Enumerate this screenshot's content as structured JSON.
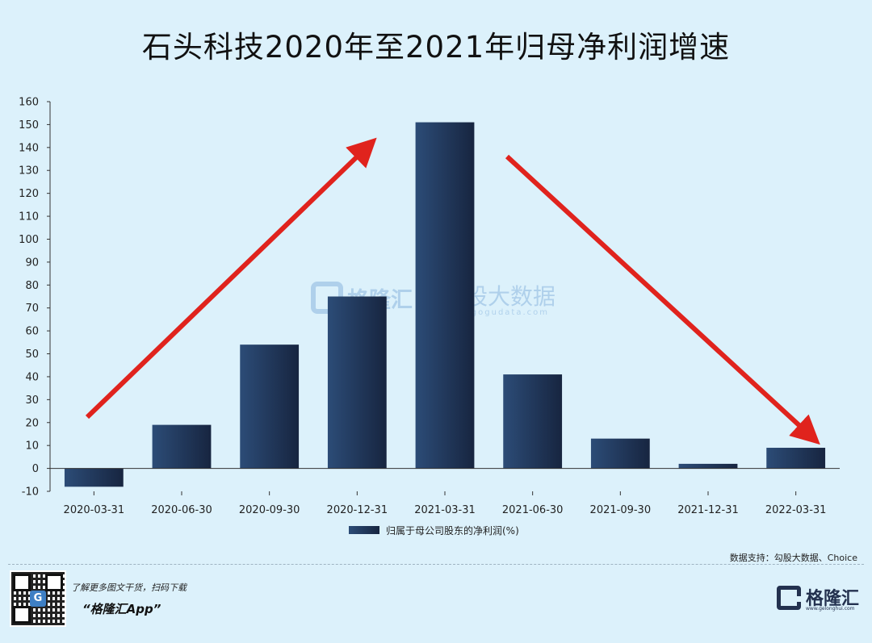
{
  "title": "石头科技2020年至2021年归母净利润增速",
  "watermark": {
    "brand_cn": "格隆汇",
    "data_cn": "勾股大数据",
    "url": "www.gogudata.com"
  },
  "chart_data": {
    "type": "bar",
    "title": "石头科技2020年至2021年归母净利润增速",
    "categories": [
      "2020-03-31",
      "2020-06-30",
      "2020-09-30",
      "2020-12-31",
      "2021-03-31",
      "2021-06-30",
      "2021-09-30",
      "2021-12-31",
      "2022-03-31"
    ],
    "series": [
      {
        "name": "归属于母公司股东的净利润(%)",
        "values": [
          -8,
          19,
          54,
          75,
          151,
          41,
          13,
          2,
          9
        ]
      }
    ],
    "ylim": [
      -10,
      160
    ],
    "ytick_step": 10,
    "bar_color_dark": "#172540",
    "bar_color_light": "#2c4c77",
    "arrow_color": "#e0231d",
    "annotations": [
      "trend-up-arrow",
      "trend-down-arrow"
    ],
    "legend_position": "bottom-center",
    "grid": false
  },
  "footer": {
    "source": "数据支持：勾股大数据、Choice",
    "promo_line": "了解更多图文干货，扫码下载",
    "app_line": "“格隆汇App”",
    "brand_name": "格隆汇",
    "brand_url": "www.gelonghui.com"
  }
}
